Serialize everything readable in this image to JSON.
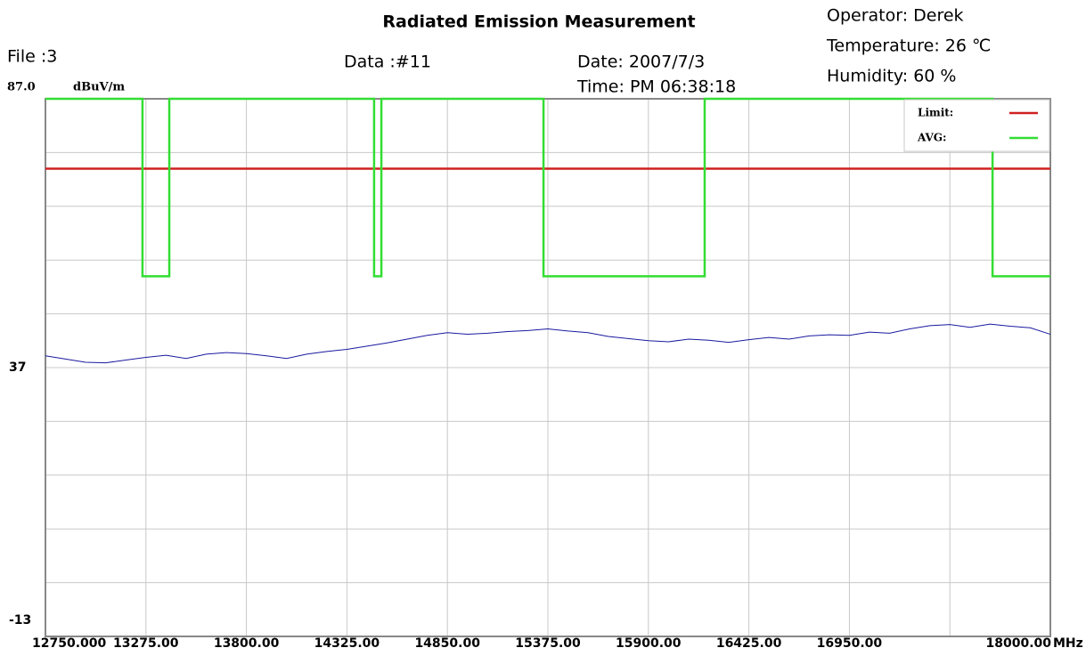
{
  "chart_data": {
    "type": "line",
    "title": "Radiated Emission Measurement",
    "file": "File :3",
    "data_id": "Data :#11",
    "date": "Date: 2007/7/3",
    "time": "Time: PM 06:38:18",
    "operator": "Operator:  Derek",
    "temperature": "Temperature:  26 ℃",
    "humidity": "Humidity:  60 %",
    "y_unit": "dBuV/m",
    "x_unit": "MHz",
    "xlim": [
      12750,
      18000
    ],
    "ylim": [
      -13,
      87
    ],
    "xticks": [
      {
        "value": 12750,
        "label": "12750.000"
      },
      {
        "value": 13275,
        "label": "13275.00"
      },
      {
        "value": 13800,
        "label": "13800.00"
      },
      {
        "value": 14325,
        "label": "14325.00"
      },
      {
        "value": 14850,
        "label": "14850.00"
      },
      {
        "value": 15375,
        "label": "15375.00"
      },
      {
        "value": 15900,
        "label": "15900.00"
      },
      {
        "value": 16425,
        "label": "16425.00"
      },
      {
        "value": 16950,
        "label": "16950.00"
      },
      {
        "value": 17475,
        "label": null
      },
      {
        "value": 18000,
        "label": "18000.00"
      }
    ],
    "yticks": [
      {
        "value": 87,
        "label": "87.0"
      },
      {
        "value": 77,
        "label": null
      },
      {
        "value": 67,
        "label": null
      },
      {
        "value": 57,
        "label": null
      },
      {
        "value": 47,
        "label": null
      },
      37,
      {
        "value": 27,
        "label": null
      },
      {
        "value": 17,
        "label": null
      },
      {
        "value": 7,
        "label": null
      },
      {
        "value": -3,
        "label": null
      },
      -13
    ],
    "grid": true,
    "series": [
      {
        "name": "Limit:",
        "color": "#d02020",
        "x": [
          12750,
          18000
        ],
        "values": [
          74,
          74
        ]
      },
      {
        "name": "AVG:",
        "color": "#33dd33",
        "x": [
          12750,
          13257,
          13257,
          13397,
          13397,
          14467,
          14467,
          14505,
          14505,
          15352,
          15352,
          16194,
          16194,
          17698,
          17698,
          18000
        ],
        "values": [
          87,
          87,
          54,
          54,
          87,
          87,
          54,
          54,
          87,
          87,
          54,
          54,
          87,
          87,
          54,
          54
        ]
      },
      {
        "color": "#1a1aa0",
        "x": [
          12750,
          12855,
          12960,
          13065,
          13170,
          13275,
          13380,
          13485,
          13590,
          13695,
          13800,
          13905,
          14010,
          14115,
          14220,
          14325,
          14430,
          14535,
          14640,
          14745,
          14850,
          14955,
          15060,
          15165,
          15270,
          15375,
          15480,
          15585,
          15690,
          15795,
          15900,
          16005,
          16110,
          16215,
          16320,
          16425,
          16530,
          16635,
          16740,
          16845,
          16950,
          17055,
          17160,
          17265,
          17370,
          17475,
          17580,
          17685,
          17790,
          17895,
          18000
        ],
        "values": [
          39.2,
          38.6,
          38.0,
          37.9,
          38.4,
          38.9,
          39.3,
          38.7,
          39.5,
          39.8,
          39.6,
          39.2,
          38.7,
          39.5,
          40.0,
          40.4,
          41.0,
          41.6,
          42.3,
          43.0,
          43.5,
          43.2,
          43.4,
          43.7,
          43.9,
          44.2,
          43.8,
          43.5,
          42.8,
          42.4,
          42.0,
          41.8,
          42.3,
          42.1,
          41.7,
          42.2,
          42.6,
          42.3,
          42.9,
          43.1,
          43.0,
          43.6,
          43.4,
          44.2,
          44.8,
          45.0,
          44.5,
          45.1,
          44.7,
          44.4,
          43.2
        ]
      }
    ]
  }
}
